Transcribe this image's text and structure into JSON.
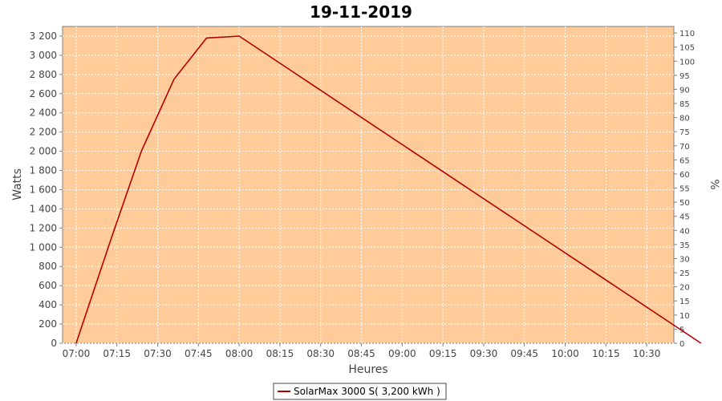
{
  "chart_data": {
    "type": "line",
    "title": "19-11-2019",
    "xlabel": "Heures",
    "ylabel": "Watts",
    "y2label": "%",
    "x_ticks": [
      "07:00",
      "07:15",
      "07:30",
      "07:45",
      "08:00",
      "08:15",
      "08:30",
      "08:45",
      "09:00",
      "09:15",
      "09:30",
      "09:45",
      "10:00",
      "10:15",
      "10:30"
    ],
    "y_ticks": [
      "0",
      "200",
      "400",
      "600",
      "800",
      "1 000",
      "1 200",
      "1 400",
      "1 600",
      "1 800",
      "2 000",
      "2 200",
      "2 400",
      "2 600",
      "2 800",
      "3 000",
      "3 200"
    ],
    "y2_ticks": [
      "0",
      "5",
      "10",
      "15",
      "20",
      "25",
      "30",
      "35",
      "40",
      "45",
      "50",
      "55",
      "60",
      "65",
      "70",
      "75",
      "80",
      "85",
      "90",
      "95",
      "100",
      "105",
      "110"
    ],
    "xlim": [
      "06:55",
      "10:40"
    ],
    "ylim": [
      0,
      3300
    ],
    "y2lim": [
      0,
      112.3
    ],
    "grid": true,
    "legend_position": "bottom",
    "colors": {
      "plot_bg": "#ffcc99",
      "series": "#b40000"
    },
    "series": [
      {
        "name": "SolarMax 3000 S( 3,200 kWh )",
        "x": [
          "07:00",
          "07:13",
          "07:24",
          "07:36",
          "07:48",
          "08:00",
          "10:50"
        ],
        "y": [
          0,
          1100,
          2000,
          2750,
          3180,
          3200,
          0
        ]
      }
    ]
  }
}
